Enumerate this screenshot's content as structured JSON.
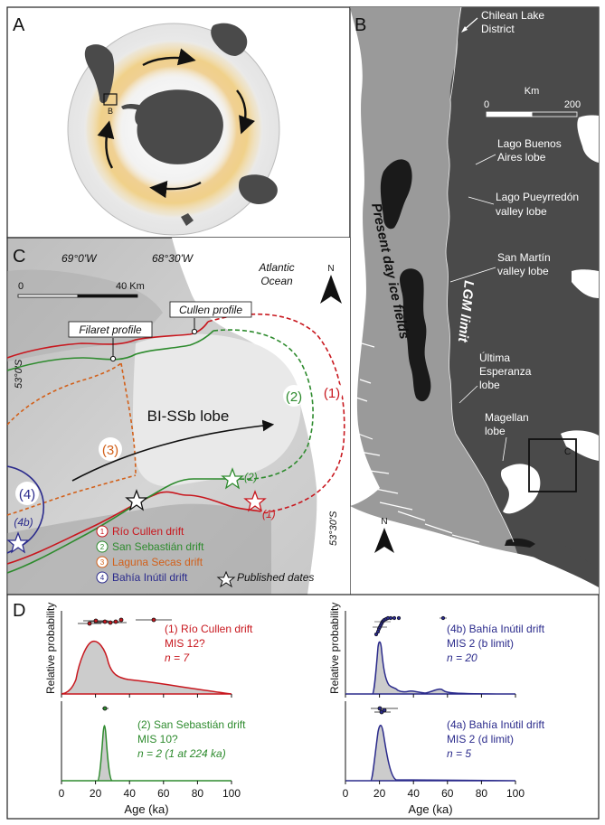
{
  "panels": {
    "a": {
      "letter": "A",
      "box_label": "B"
    },
    "b": {
      "letter": "B",
      "chilean": [
        "Chilean Lake",
        "District"
      ],
      "scale": {
        "title": "Km",
        "min": "0",
        "max": "200"
      },
      "lobes": [
        [
          "Lago Buenos",
          "Aires lobe"
        ],
        [
          "Lago Pueyrredón",
          "valley lobe"
        ],
        [
          "San Martín",
          "valley lobe"
        ],
        [
          "Última",
          "Esperanza",
          "lobe"
        ],
        [
          "Magellan",
          "lobe"
        ]
      ],
      "inset_label": "C",
      "ice_fields": "Present day ice fields",
      "lgm": "LGM limit",
      "north": "N"
    },
    "c": {
      "letter": "C",
      "lon1": "69°0'W",
      "lon2": "68°30'W",
      "ocean": [
        "Atlantic",
        "Ocean"
      ],
      "scale": {
        "min": "0",
        "max": "40 Km"
      },
      "north": "N",
      "cullen_profile": "Cullen profile",
      "filaret_profile": "Filaret profile",
      "lat1": "53°0'S",
      "lat2": "53°30'S",
      "lobe_name": "BI-SSb lobe",
      "drift_numbers": {
        "d1": "(1)",
        "d2": "(2)",
        "d3": "(3)",
        "d4": "(4)",
        "d4b": "(4b)"
      },
      "star_labels": {
        "s1": "(1)",
        "s2": "(2)"
      },
      "legend": {
        "markers": [
          "1",
          "2",
          "3",
          "4"
        ],
        "items": [
          "Río Cullen drift",
          "San Sebastián drift",
          "Laguna Secas drift",
          "Bahía Inútil drift"
        ],
        "published": "Published dates"
      }
    },
    "d": {
      "letter": "D",
      "ylabel": "Relative probability",
      "xlabel": "Age (ka)",
      "xticks": [
        "0",
        "20",
        "40",
        "60",
        "80",
        "100"
      ],
      "plots": [
        {
          "lines": [
            "(1) Río Cullen drift",
            "MIS 12?",
            "n = 7"
          ]
        },
        {
          "lines": [
            "(4b) Bahía Inútil drift",
            "MIS 2 (b limit)",
            "n = 20"
          ]
        },
        {
          "lines": [
            "(2) San Sebastián drift",
            "MIS 10?",
            "n = 2 (1 at 224 ka)"
          ]
        },
        {
          "lines": [
            "(4a) Bahía Inútil drift",
            "MIS 2 (d limit)",
            "n = 5"
          ]
        }
      ]
    }
  },
  "colors": {
    "cullen": "#c8171e",
    "sebastian": "#2e8b2e",
    "secas": "#d2601a",
    "inutil": "#2b2b8c",
    "ice": "#1a1a1a",
    "lgm_zone": "#4a4a4a",
    "land_outside": "#9a9a9a",
    "ocean": "#ffffff",
    "halo": "#f0c060"
  }
}
